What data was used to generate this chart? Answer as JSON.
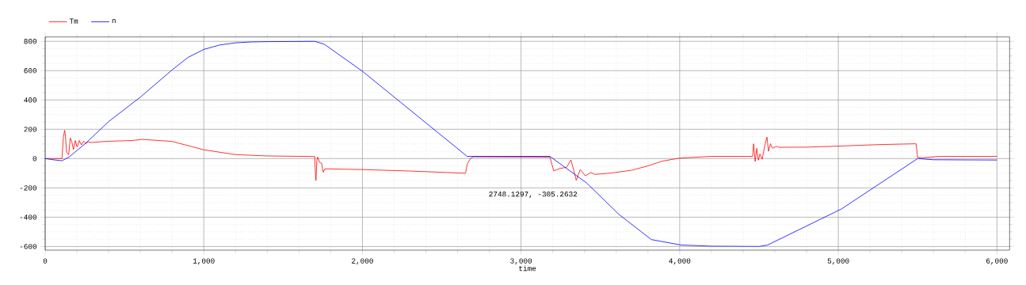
{
  "chart_data": {
    "type": "line",
    "xlabel": "time",
    "annotations": [
      "2748.1297, -305.2632"
    ],
    "series": [
      {
        "name": "Tm",
        "color": "#ff0000",
        "x": [
          0,
          106,
          115,
          123,
          128,
          135,
          148,
          158,
          168,
          178,
          190,
          201,
          215,
          228,
          243,
          256,
          273,
          290,
          400,
          547,
          613,
          800,
          1000,
          1200,
          1400,
          1700,
          1702,
          1707,
          1713,
          1718,
          1730,
          1743,
          1753,
          1763,
          2000,
          2300,
          2650,
          2660,
          2680,
          2700,
          3182,
          3206,
          3246,
          3286,
          3315,
          3348,
          3373,
          3406,
          3440,
          3465,
          3500,
          3574,
          3694,
          3800,
          3888,
          4000,
          4200,
          4460,
          4466,
          4476,
          4486,
          4496,
          4506,
          4520,
          4537,
          4550,
          4560,
          4572,
          4586,
          4606,
          4626,
          4800,
          5000,
          5250,
          5490,
          5500,
          5530,
          5630,
          6000
        ],
        "values": [
          0,
          0,
          149,
          193,
          149,
          44,
          26,
          140,
          114,
          61,
          123,
          79,
          123,
          93,
          119,
          104,
          114,
          110,
          118,
          123,
          131,
          117,
          60,
          27,
          18,
          14,
          -68,
          -149,
          -9,
          10,
          -26,
          -33,
          -93,
          -70,
          -75,
          -85,
          -100,
          -40,
          0,
          12,
          10,
          -84,
          -67,
          -60,
          -10,
          -148,
          -75,
          -118,
          -95,
          -108,
          -105,
          -98,
          -80,
          -50,
          -18,
          3,
          15,
          15,
          101,
          -20,
          70,
          -11,
          31,
          -5,
          91,
          147,
          50,
          101,
          70,
          83,
          77,
          78,
          85,
          95,
          101,
          9,
          5,
          15,
          15
        ]
      },
      {
        "name": "n",
        "color": "#0000ff",
        "x": [
          0,
          50,
          105,
          150,
          256,
          402,
          602,
          800,
          900,
          1000,
          1100,
          1200,
          1300,
          1400,
          1700,
          1730,
          1760,
          2000,
          2660,
          3182,
          3414,
          3618,
          3822,
          4010,
          4200,
          4500,
          4554,
          5018,
          5500,
          5600,
          6000
        ],
        "values": [
          0,
          -8,
          -15,
          10,
          105,
          254,
          421,
          605,
          690,
          745,
          775,
          790,
          796,
          798,
          800,
          790,
          780,
          596,
          15,
          15,
          -167,
          -382,
          -553,
          -590,
          -598,
          -600,
          -590,
          -345,
          0,
          -8,
          -10
        ]
      }
    ],
    "xlim": [
      0,
      6080
    ],
    "ylim": [
      -625,
      830
    ],
    "xticks": [
      0,
      {
        "value": 1000,
        "label": "1,000"
      },
      {
        "value": 2000,
        "label": "2,000"
      },
      {
        "value": 3000,
        "label": "3,000"
      },
      {
        "value": 4000,
        "label": "4,000"
      },
      {
        "value": 5000,
        "label": "5,000"
      },
      {
        "value": 6000,
        "label": "6,000"
      }
    ],
    "yticks": [
      -600,
      -400,
      -200,
      0,
      200,
      400,
      600,
      800
    ],
    "grid": true,
    "legend": "top left"
  }
}
